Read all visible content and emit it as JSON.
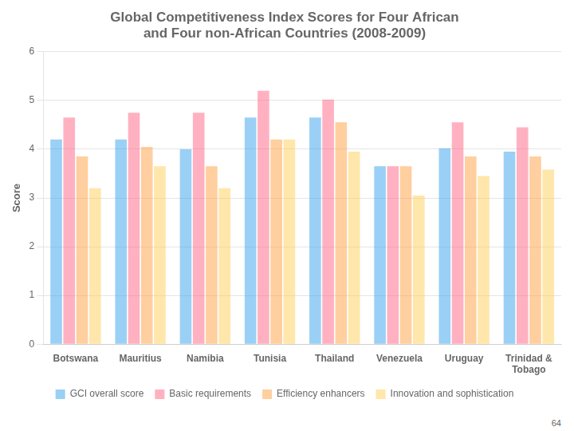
{
  "chart_data": {
    "type": "bar",
    "title": [
      "Global Competitiveness Index Scores for Four African",
      "and Four non-African Countries (2008-2009)"
    ],
    "y_label": "Score",
    "categories": [
      "Botswana",
      "Mauritius",
      "Namibia",
      "Tunisia",
      "Thailand",
      "Venezuela",
      "Uruguay",
      "Trinidad &\nTobago"
    ],
    "series": [
      {
        "name": "GCI overall score",
        "values": [
          4.2,
          4.2,
          4.0,
          4.65,
          4.65,
          3.65,
          4.02,
          3.95
        ]
      },
      {
        "name": "Basic requirements",
        "values": [
          4.65,
          4.75,
          4.75,
          5.2,
          5.02,
          3.65,
          4.55,
          4.45
        ]
      },
      {
        "name": "Efficiency enhancers",
        "values": [
          3.85,
          4.05,
          3.65,
          4.2,
          4.55,
          3.65,
          3.85,
          3.85
        ]
      },
      {
        "name": "Innovation and sophistication",
        "values": [
          3.2,
          3.65,
          3.2,
          4.2,
          3.95,
          3.05,
          3.45,
          3.58
        ]
      }
    ],
    "ylim": [
      0,
      6
    ],
    "yticks": [
      0,
      1,
      2,
      3,
      4,
      5,
      6
    ],
    "grid": true,
    "legend": "bottom",
    "annotations": [
      "64"
    ]
  }
}
